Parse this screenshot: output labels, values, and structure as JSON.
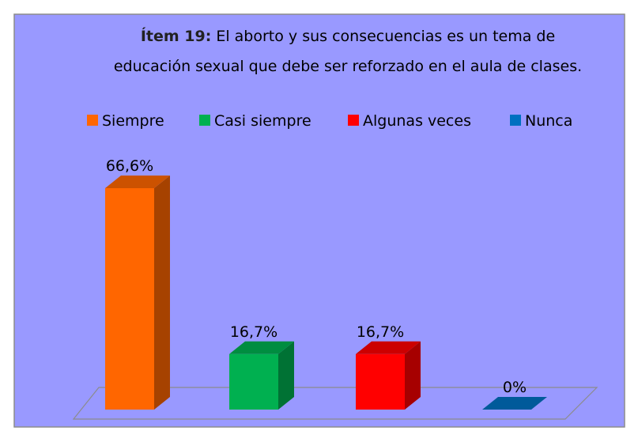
{
  "chart_data": {
    "type": "bar3d",
    "title": {
      "label": "Ítem 19:",
      "lines": [
        "El aborto y sus consecuencias es un tema de",
        "educación sexual que debe ser reforzado en el aula de clases."
      ]
    },
    "categories": [
      "Siempre",
      "Casi siempre",
      "Algunas veces",
      "Nunca"
    ],
    "values": [
      66.6,
      16.7,
      16.7,
      0
    ],
    "value_labels": [
      "66,6%",
      "16,7%",
      "16,7%",
      "0%"
    ],
    "colors": [
      "#ff6600",
      "#00b050",
      "#ff0000",
      "#0070c0"
    ],
    "legend": "top"
  }
}
